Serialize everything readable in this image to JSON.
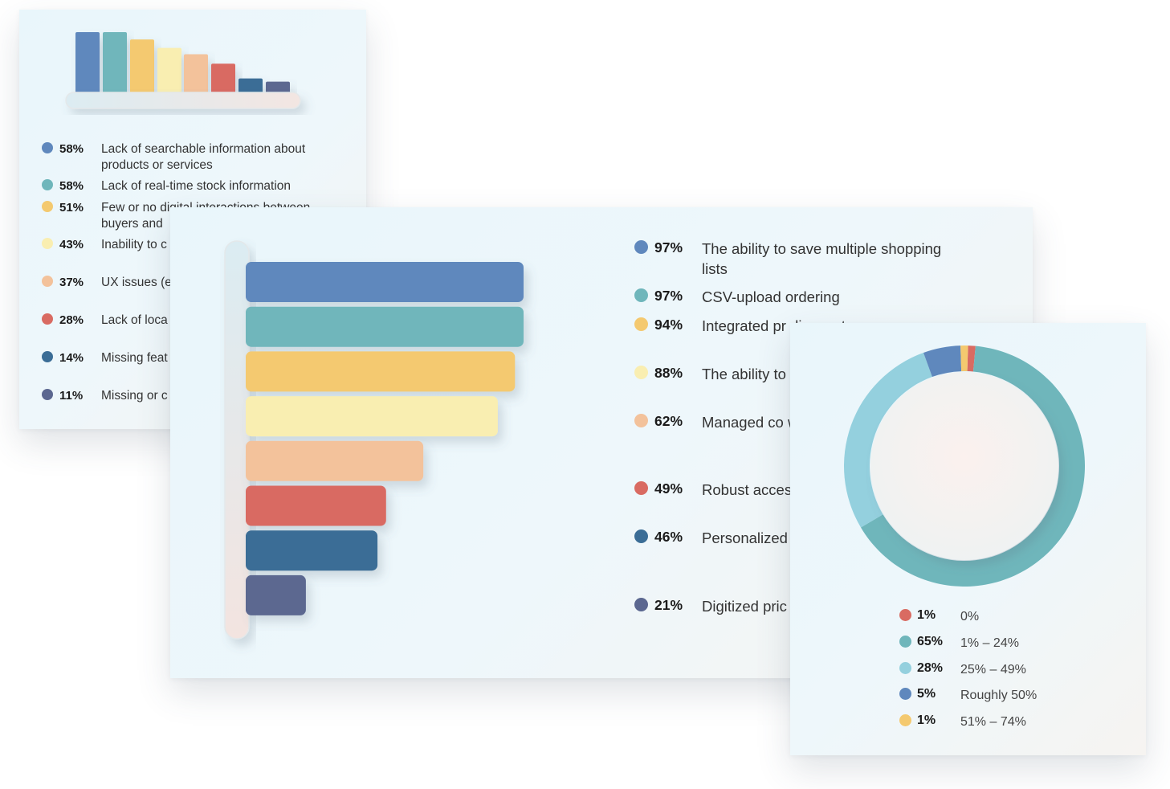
{
  "chart_data": [
    {
      "type": "bar",
      "orientation": "vertical",
      "values": [
        58,
        58,
        51,
        43,
        37,
        28,
        14,
        11
      ],
      "categories": [
        "Lack of searchable information about products or services",
        "Lack of real-time stock information",
        "Few or no digital interactions between buyers and",
        "Inability to c between su",
        "UX issues (e unintuitive i",
        "Lack of loca personaliza",
        "Missing feat consumer e",
        "Missing or c"
      ],
      "labels": [
        "58%",
        "58%",
        "51%",
        "43%",
        "37%",
        "28%",
        "14%",
        "11%"
      ],
      "colors": [
        "#5f88bd",
        "#6fb6bb",
        "#f4c96f",
        "#f9eeb1",
        "#f3c29b",
        "#d96b62",
        "#3b6d96",
        "#5b6790"
      ]
    },
    {
      "type": "bar",
      "orientation": "horizontal",
      "values": [
        97,
        97,
        94,
        88,
        62,
        49,
        46,
        21
      ],
      "categories": [
        "The ability to save multiple shopping lists",
        "CSV-upload ordering",
        "Integrated pr discounts",
        "The ability to vetted suppli",
        "Managed co with unique e department c",
        "Robust acces and permissi",
        "Personalized configuratior corporate ac",
        "Digitized pric requests"
      ],
      "labels": [
        "97%",
        "97%",
        "94%",
        "88%",
        "62%",
        "49%",
        "46%",
        "21%"
      ],
      "colors": [
        "#5f88bd",
        "#6fb6bb",
        "#f4c96f",
        "#f9eeb1",
        "#f3c29b",
        "#d96b62",
        "#3b6d96",
        "#5b6790"
      ]
    },
    {
      "type": "pie",
      "donut": true,
      "values": [
        1,
        65,
        28,
        5,
        1
      ],
      "categories": [
        "0%",
        "1% – 24%",
        "25% – 49%",
        "Roughly 50%",
        "51% – 74%"
      ],
      "labels": [
        "1%",
        "65%",
        "28%",
        "5%",
        "1%"
      ],
      "colors": [
        "#d96b62",
        "#6fb6bb",
        "#94d0de",
        "#5f88bd",
        "#f4c96f"
      ]
    }
  ]
}
